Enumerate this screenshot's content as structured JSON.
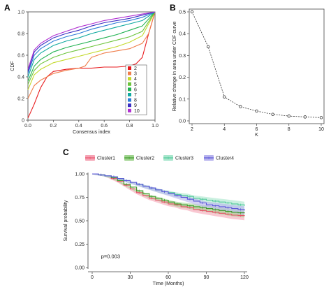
{
  "panels": {
    "a": "A",
    "b": "B",
    "c": "C"
  },
  "chart_data": [
    {
      "type": "line",
      "panel": "A",
      "xlabel": "Consensus index",
      "ylabel": "CDF",
      "xlim": [
        0,
        1
      ],
      "ylim": [
        0,
        1
      ],
      "x_ticks": [
        "0.0",
        "0.2",
        "0.4",
        "0.6",
        "0.8",
        "1.0"
      ],
      "y_ticks": [
        "0",
        "0.2",
        "0.4",
        "0.6",
        "0.8",
        "1.0"
      ],
      "legend_placement": "bottom-right",
      "series": [
        {
          "name": "2",
          "color": "#e8191c",
          "x": [
            0,
            0.02,
            0.05,
            0.1,
            0.15,
            0.2,
            0.3,
            0.4,
            0.5,
            0.6,
            0.7,
            0.8,
            0.85,
            0.9,
            0.95,
            1.0
          ],
          "y": [
            0.02,
            0.07,
            0.15,
            0.3,
            0.4,
            0.45,
            0.47,
            0.48,
            0.48,
            0.49,
            0.49,
            0.5,
            0.52,
            0.58,
            0.8,
            1.0
          ]
        },
        {
          "name": "3",
          "color": "#f07d4a",
          "x": [
            0,
            0.05,
            0.1,
            0.2,
            0.3,
            0.4,
            0.45,
            0.5,
            0.6,
            0.7,
            0.8,
            0.9,
            0.95,
            1.0
          ],
          "y": [
            0.2,
            0.32,
            0.37,
            0.43,
            0.46,
            0.48,
            0.5,
            0.58,
            0.62,
            0.64,
            0.66,
            0.71,
            0.8,
            1.0
          ]
        },
        {
          "name": "4",
          "color": "#c3d92b",
          "x": [
            0,
            0.05,
            0.1,
            0.2,
            0.3,
            0.4,
            0.5,
            0.6,
            0.7,
            0.8,
            0.9,
            1.0
          ],
          "y": [
            0.28,
            0.42,
            0.47,
            0.53,
            0.56,
            0.59,
            0.62,
            0.65,
            0.68,
            0.72,
            0.78,
            1.0
          ]
        },
        {
          "name": "5",
          "color": "#6cc43b",
          "x": [
            0,
            0.05,
            0.1,
            0.2,
            0.3,
            0.4,
            0.5,
            0.6,
            0.7,
            0.8,
            0.9,
            1.0
          ],
          "y": [
            0.33,
            0.46,
            0.52,
            0.58,
            0.62,
            0.65,
            0.68,
            0.71,
            0.74,
            0.77,
            0.82,
            1.0
          ]
        },
        {
          "name": "6",
          "color": "#1fb150",
          "x": [
            0,
            0.05,
            0.1,
            0.2,
            0.3,
            0.4,
            0.5,
            0.6,
            0.7,
            0.8,
            0.9,
            1.0
          ],
          "y": [
            0.36,
            0.5,
            0.56,
            0.63,
            0.67,
            0.7,
            0.73,
            0.76,
            0.79,
            0.83,
            0.87,
            1.0
          ]
        },
        {
          "name": "7",
          "color": "#10a9a0",
          "x": [
            0,
            0.05,
            0.1,
            0.2,
            0.3,
            0.4,
            0.5,
            0.6,
            0.7,
            0.8,
            0.9,
            1.0
          ],
          "y": [
            0.4,
            0.56,
            0.62,
            0.69,
            0.73,
            0.76,
            0.8,
            0.83,
            0.86,
            0.89,
            0.92,
            1.0
          ]
        },
        {
          "name": "8",
          "color": "#2b7cd6",
          "x": [
            0,
            0.05,
            0.1,
            0.2,
            0.3,
            0.4,
            0.5,
            0.6,
            0.7,
            0.8,
            0.9,
            1.0
          ],
          "y": [
            0.43,
            0.6,
            0.66,
            0.73,
            0.77,
            0.8,
            0.84,
            0.87,
            0.9,
            0.92,
            0.95,
            1.0
          ]
        },
        {
          "name": "9",
          "color": "#3a2fc4",
          "x": [
            0,
            0.05,
            0.1,
            0.2,
            0.3,
            0.4,
            0.5,
            0.6,
            0.7,
            0.8,
            0.9,
            1.0
          ],
          "y": [
            0.45,
            0.63,
            0.69,
            0.76,
            0.8,
            0.83,
            0.87,
            0.9,
            0.92,
            0.94,
            0.97,
            1.0
          ]
        },
        {
          "name": "10",
          "color": "#b02fd1",
          "x": [
            0,
            0.05,
            0.1,
            0.2,
            0.3,
            0.4,
            0.5,
            0.6,
            0.7,
            0.8,
            0.9,
            1.0
          ],
          "y": [
            0.47,
            0.65,
            0.71,
            0.78,
            0.82,
            0.86,
            0.89,
            0.92,
            0.94,
            0.96,
            0.98,
            1.0
          ]
        }
      ]
    },
    {
      "type": "line",
      "panel": "B",
      "xlabel": "K",
      "ylabel": "Relative change in area under CDF curve",
      "xlim": [
        2,
        10
      ],
      "ylim": [
        0,
        0.5
      ],
      "x_ticks": [
        "2",
        "4",
        "6",
        "8",
        "10"
      ],
      "y_ticks": [
        "0.0",
        "0.1",
        "0.2",
        "0.3",
        "0.4",
        "0.5"
      ],
      "x": [
        2,
        3,
        4,
        5,
        6,
        7,
        8,
        9,
        10
      ],
      "y": [
        0.5,
        0.34,
        0.11,
        0.065,
        0.045,
        0.03,
        0.022,
        0.018,
        0.015
      ],
      "color": "#333333"
    },
    {
      "type": "line",
      "panel": "C",
      "xlabel": "Time (Months)",
      "ylabel": "Survival probability",
      "xlim": [
        0,
        120
      ],
      "ylim": [
        0,
        1
      ],
      "x_ticks": [
        "0",
        "30",
        "60",
        "90",
        "120"
      ],
      "y_ticks": [
        "0.00",
        "0.25",
        "0.50",
        "0.75",
        "1.00"
      ],
      "annotation": "p=0.003",
      "legend_placement": "top",
      "series": [
        {
          "name": "Cluster1",
          "color": "#e8526a",
          "band": "#f5a3b4",
          "x": [
            0,
            5,
            10,
            15,
            20,
            25,
            30,
            35,
            40,
            45,
            50,
            55,
            60,
            65,
            70,
            75,
            80,
            85,
            90,
            95,
            100,
            105,
            110,
            115,
            120
          ],
          "y": [
            1.0,
            0.99,
            0.98,
            0.95,
            0.92,
            0.88,
            0.84,
            0.8,
            0.77,
            0.74,
            0.72,
            0.7,
            0.68,
            0.67,
            0.65,
            0.64,
            0.62,
            0.61,
            0.6,
            0.59,
            0.58,
            0.57,
            0.56,
            0.555,
            0.55
          ]
        },
        {
          "name": "Cluster2",
          "color": "#3e9b2a",
          "band": "#9fd38e",
          "x": [
            0,
            5,
            10,
            15,
            20,
            25,
            30,
            35,
            40,
            45,
            50,
            55,
            60,
            65,
            70,
            75,
            80,
            85,
            90,
            95,
            100,
            105,
            110,
            115,
            120
          ],
          "y": [
            1.0,
            0.99,
            0.98,
            0.96,
            0.93,
            0.89,
            0.86,
            0.82,
            0.79,
            0.76,
            0.74,
            0.72,
            0.7,
            0.68,
            0.67,
            0.66,
            0.65,
            0.64,
            0.63,
            0.62,
            0.61,
            0.6,
            0.59,
            0.585,
            0.58
          ]
        },
        {
          "name": "Cluster3",
          "color": "#4fc79a",
          "band": "#a8e6cc",
          "x": [
            0,
            5,
            10,
            15,
            20,
            25,
            30,
            35,
            40,
            45,
            50,
            55,
            60,
            65,
            70,
            75,
            80,
            85,
            90,
            95,
            100,
            105,
            110,
            115,
            120
          ],
          "y": [
            1.0,
            0.99,
            0.98,
            0.97,
            0.95,
            0.93,
            0.91,
            0.89,
            0.87,
            0.85,
            0.83,
            0.81,
            0.8,
            0.78,
            0.77,
            0.76,
            0.74,
            0.73,
            0.72,
            0.71,
            0.7,
            0.69,
            0.68,
            0.67,
            0.66
          ]
        },
        {
          "name": "Cluster4",
          "color": "#5a55d8",
          "band": "#b7b3ee",
          "x": [
            0,
            5,
            10,
            15,
            20,
            25,
            30,
            35,
            40,
            45,
            50,
            55,
            60,
            65,
            70,
            75,
            80,
            85,
            90,
            95,
            100,
            105,
            110,
            115,
            120
          ],
          "y": [
            1.0,
            0.99,
            0.98,
            0.97,
            0.95,
            0.93,
            0.91,
            0.89,
            0.87,
            0.85,
            0.83,
            0.81,
            0.79,
            0.77,
            0.75,
            0.73,
            0.71,
            0.69,
            0.67,
            0.66,
            0.65,
            0.64,
            0.63,
            0.62,
            0.61
          ]
        }
      ]
    }
  ]
}
